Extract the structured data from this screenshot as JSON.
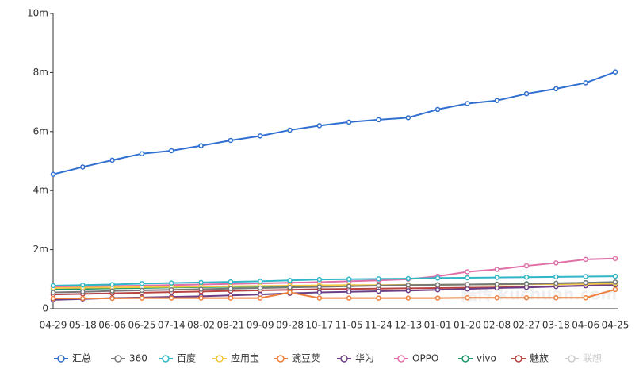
{
  "chart_data": {
    "type": "line",
    "categories": [
      "04-29",
      "05-18",
      "06-06",
      "06-25",
      "07-14",
      "08-02",
      "08-21",
      "09-09",
      "09-28",
      "10-17",
      "11-05",
      "11-24",
      "12-13",
      "01-01",
      "01-20",
      "02-08",
      "02-27",
      "03-18",
      "04-06",
      "04-25"
    ],
    "ylim": [
      0,
      10
    ],
    "yticks": [
      0,
      {
        "value": 2,
        "label": "2m"
      },
      {
        "value": 4,
        "label": "4m"
      },
      {
        "value": 6,
        "label": "6m"
      },
      {
        "value": 8,
        "label": "8m"
      },
      {
        "value": 10,
        "label": "10m"
      }
    ],
    "watermark": "酷传 kuchuan.com",
    "legend": "bottom",
    "series": [
      {
        "name": "汇总",
        "color": "#2f6fd0",
        "values": [
          4.55,
          4.8,
          5.03,
          5.25,
          5.35,
          5.52,
          5.7,
          5.85,
          6.05,
          6.2,
          6.32,
          6.4,
          6.47,
          6.75,
          6.95,
          7.05,
          7.28,
          7.45,
          7.65,
          8.02
        ]
      },
      {
        "name": "360",
        "color": "#777777",
        "values": [
          0.55,
          0.57,
          0.6,
          0.62,
          0.64,
          0.66,
          0.68,
          0.7,
          0.72,
          0.74,
          0.76,
          0.78,
          0.8,
          0.81,
          0.82,
          0.83,
          0.84,
          0.86,
          0.88,
          0.9
        ]
      },
      {
        "name": "百度",
        "color": "#30b6c6",
        "values": [
          0.78,
          0.8,
          0.82,
          0.85,
          0.87,
          0.89,
          0.91,
          0.93,
          0.96,
          0.99,
          1.0,
          1.01,
          1.02,
          1.04,
          1.05,
          1.06,
          1.07,
          1.08,
          1.09,
          1.1
        ]
      },
      {
        "name": "应用宝",
        "color": "#f5c842",
        "values": [
          0.7,
          0.71,
          0.72,
          0.73,
          0.74,
          0.75,
          0.76,
          0.77,
          0.78,
          0.79,
          0.8,
          0.8,
          0.81,
          0.81,
          0.82,
          0.82,
          0.83,
          0.83,
          0.84,
          0.85
        ]
      },
      {
        "name": "豌豆荚",
        "color": "#ee7f3c",
        "values": [
          0.35,
          0.35,
          0.35,
          0.36,
          0.36,
          0.36,
          0.36,
          0.36,
          0.55,
          0.36,
          0.36,
          0.36,
          0.36,
          0.36,
          0.37,
          0.37,
          0.37,
          0.37,
          0.37,
          0.65
        ]
      },
      {
        "name": "华为",
        "color": "#6b3f86",
        "values": [
          0.3,
          0.33,
          0.36,
          0.38,
          0.4,
          0.42,
          0.45,
          0.48,
          0.52,
          0.55,
          0.57,
          0.59,
          0.61,
          0.64,
          0.67,
          0.7,
          0.72,
          0.75,
          0.78,
          0.8
        ]
      },
      {
        "name": "OPPO",
        "color": "#e06fa7",
        "values": [
          0.75,
          0.76,
          0.77,
          0.78,
          0.8,
          0.82,
          0.84,
          0.86,
          0.88,
          0.9,
          0.93,
          0.96,
          1.0,
          1.1,
          1.25,
          1.33,
          1.45,
          1.55,
          1.67,
          1.7
        ]
      },
      {
        "name": "vivo",
        "color": "#1e9a6c",
        "values": [
          0.65,
          0.67,
          0.69,
          0.7,
          0.72,
          0.73,
          0.74,
          0.75,
          0.76,
          0.77,
          0.78,
          0.79,
          0.8,
          0.81,
          0.82,
          0.83,
          0.85,
          0.86,
          0.88,
          0.9
        ]
      },
      {
        "name": "魅族",
        "color": "#b94343",
        "values": [
          0.48,
          0.5,
          0.52,
          0.54,
          0.56,
          0.58,
          0.6,
          0.62,
          0.64,
          0.66,
          0.67,
          0.68,
          0.69,
          0.7,
          0.71,
          0.72,
          0.74,
          0.76,
          0.78,
          0.8
        ]
      },
      {
        "name": "联想",
        "color": "#cccccc",
        "hidden": true
      }
    ]
  }
}
